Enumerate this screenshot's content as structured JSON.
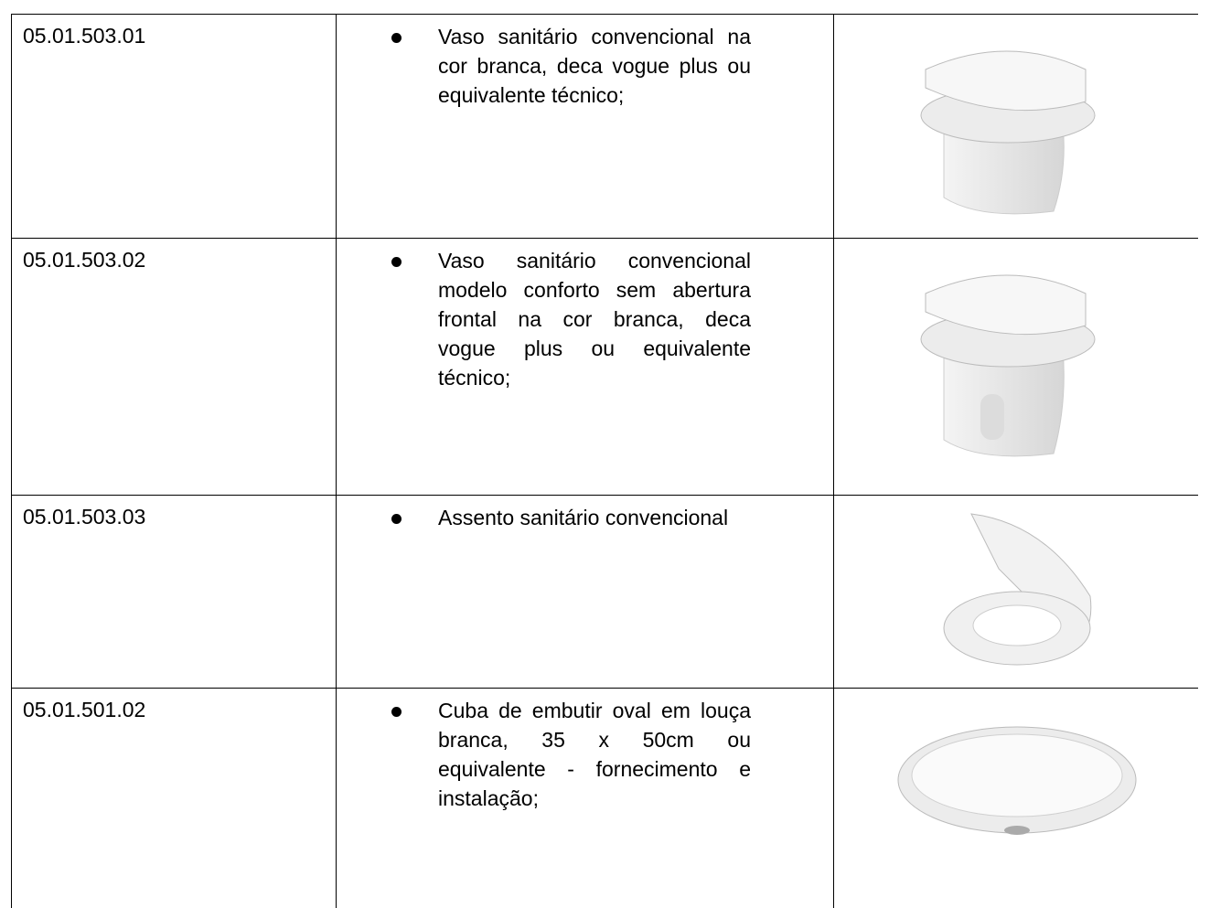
{
  "table": {
    "rows": [
      [
        "05.01.503.01",
        "Vaso sanitário convencional na cor branca, deca vogue plus ou equivalente técnico;"
      ],
      [
        "05.01.503.02",
        "Vaso sanitário convencional modelo conforto sem abertura frontal na cor branca, deca vogue plus ou equivalente técnico;"
      ],
      [
        "05.01.503.03",
        "Assento sanitário convencional"
      ],
      [
        "05.01.501.02",
        "Cuba de embutir oval em louça branca, 35 x 50cm ou equivalente - fornecimento e instalação;"
      ]
    ]
  }
}
